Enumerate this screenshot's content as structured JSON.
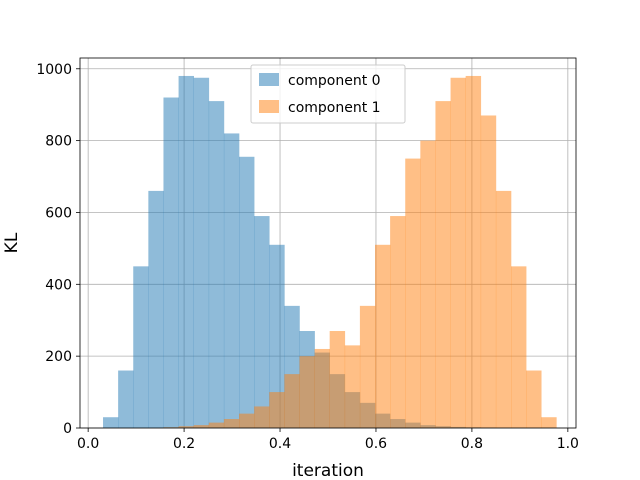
{
  "chart_data": {
    "type": "bar",
    "subtype": "histogram",
    "title": "",
    "xlabel": "iteration",
    "ylabel": "KL",
    "xlim": [
      -0.017,
      1.017
    ],
    "ylim": [
      0,
      1030
    ],
    "x_ticks": [
      "0.0",
      "0.2",
      "0.4",
      "0.6",
      "0.8",
      "1.0"
    ],
    "y_ticks": [
      "0",
      "200",
      "400",
      "600",
      "800",
      "1000"
    ],
    "grid": true,
    "legend": "upper-center",
    "bin_edges": [
      0.031,
      0.0625,
      0.094,
      0.1255,
      0.157,
      0.1885,
      0.22,
      0.2515,
      0.283,
      0.3145,
      0.346,
      0.3775,
      0.409,
      0.4405,
      0.472,
      0.5035,
      0.535,
      0.5665,
      0.598,
      0.6295,
      0.661,
      0.6925,
      0.724,
      0.7555,
      0.787,
      0.8185,
      0.85,
      0.8815,
      0.913,
      0.9445,
      0.976
    ],
    "series": [
      {
        "name": "component 0",
        "color": "#1f77b4",
        "opacity": 0.5,
        "values": [
          30,
          160,
          450,
          660,
          920,
          980,
          975,
          910,
          820,
          755,
          590,
          510,
          340,
          270,
          210,
          150,
          100,
          70,
          40,
          25,
          15,
          8,
          5,
          3,
          2,
          1,
          0,
          0,
          0,
          0
        ]
      },
      {
        "name": "component 1",
        "color": "#ff7f0e",
        "opacity": 0.5,
        "values": [
          0,
          0,
          0,
          0,
          2,
          5,
          8,
          15,
          25,
          40,
          60,
          100,
          150,
          200,
          220,
          270,
          230,
          340,
          510,
          590,
          750,
          800,
          910,
          975,
          980,
          870,
          660,
          450,
          160,
          30
        ]
      }
    ]
  }
}
